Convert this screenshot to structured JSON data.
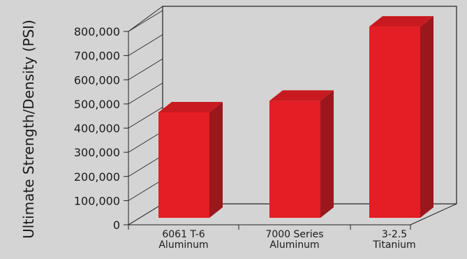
{
  "chart_data": {
    "type": "bar",
    "title": "",
    "xlabel": "",
    "ylabel": "Ultimate Strength/Density (PSI)",
    "categories": [
      [
        "6061 T-6",
        "Aluminum"
      ],
      [
        "7000 Series",
        "Aluminum"
      ],
      [
        "3-2.5",
        "Titanium"
      ]
    ],
    "values": [
      465000,
      513000,
      820000
    ],
    "ylim": [
      0,
      800000
    ],
    "yticks": [
      0,
      100000,
      200000,
      300000,
      400000,
      500000,
      600000,
      700000,
      800000
    ],
    "ytick_labels": [
      "0",
      "100,000",
      "200,000",
      "300,000",
      "400,000",
      "500,000",
      "600,000",
      "700,000",
      "800,000"
    ],
    "grid": false,
    "legend": "none",
    "colors": {
      "bar_front": "#e51d24",
      "bar_side": "#9a171c",
      "bar_top": "#c81a20",
      "background": "#d4d4d4",
      "frame": "#222222"
    }
  }
}
